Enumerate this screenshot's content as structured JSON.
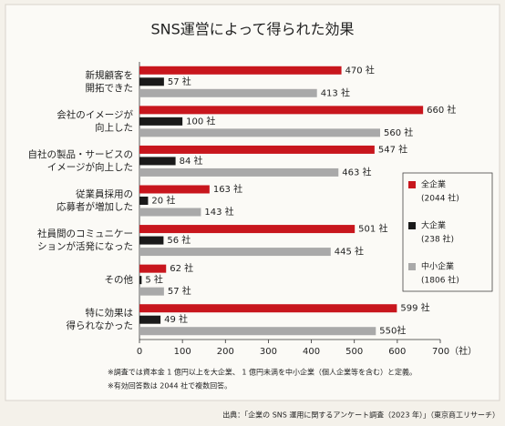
{
  "chart_data": {
    "type": "bar",
    "orientation": "horizontal",
    "title": "SNS運営によって得られた効果",
    "categories": [
      [
        "新規顧客を",
        "開拓できた"
      ],
      [
        "会社のイメージが",
        "向上した"
      ],
      [
        "自社の製品・サービスの",
        "イメージが向上した"
      ],
      [
        "従業員採用の",
        "応募者が増加した"
      ],
      [
        "社員間のコミュニケー",
        "ションが活発になった"
      ],
      [
        "その他"
      ],
      [
        "特に効果は",
        "得られなかった"
      ]
    ],
    "series": [
      {
        "name": "全企業",
        "legend_note": "(2044 社)",
        "color": "#c8161d",
        "values": [
          470,
          660,
          547,
          163,
          501,
          62,
          599
        ],
        "value_labels": [
          "470 社",
          "660 社",
          "547 社",
          "163 社",
          "501 社",
          "62 社",
          "599 社"
        ]
      },
      {
        "name": "大企業",
        "legend_note": "(238 社)",
        "color": "#1a1a1a",
        "values": [
          57,
          100,
          84,
          20,
          56,
          5,
          49
        ],
        "value_labels": [
          "57 社",
          "100 社",
          "84 社",
          "20 社",
          "56 社",
          "5 社",
          "49 社"
        ]
      },
      {
        "name": "中小企業",
        "legend_note": "(1806 社)",
        "color": "#a9a9a9",
        "values": [
          413,
          560,
          463,
          143,
          445,
          57,
          550
        ],
        "value_labels": [
          "413 社",
          "560 社",
          "463 社",
          "143 社",
          "445 社",
          "57 社",
          "550社"
        ]
      }
    ],
    "xlim": [
      0,
      700
    ],
    "xticks": [
      0,
      100,
      200,
      300,
      400,
      500,
      600,
      {
        "value": 700,
        "label": "700（社）"
      }
    ],
    "grid": false,
    "legend": "right"
  },
  "notes": [
    "※調査では資本金 1 億円以上を大企業、 1 億円未満を中小企業（個人企業等を含む）と定義。",
    "※有効回答数は 2044 社で複数回答。"
  ],
  "source": "出典：「企業の SNS 運用に関するアンケート調査（2023 年）」（東京商工リサーチ）"
}
